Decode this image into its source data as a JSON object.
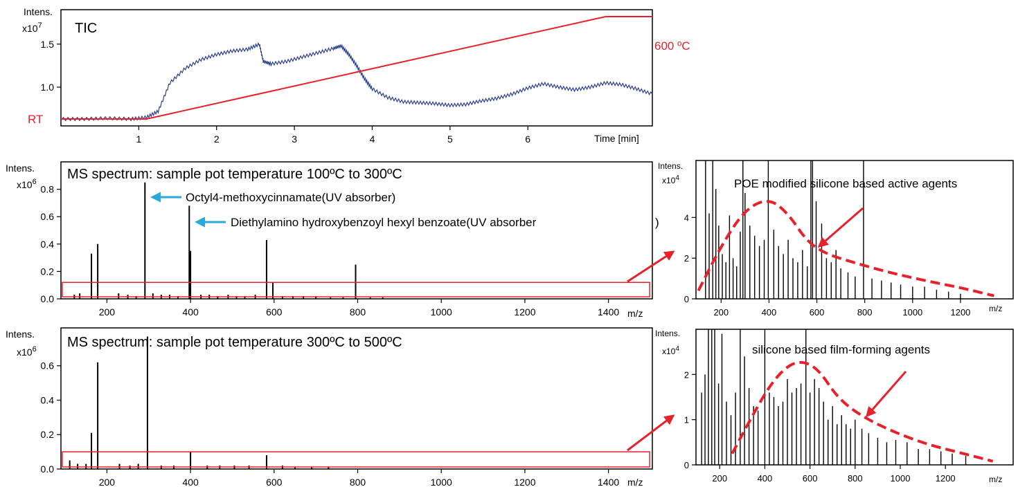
{
  "colors": {
    "tic": "#2b3f8f",
    "temperature": "#e8202a",
    "spectrum": "#000000",
    "arrow_red": "#e8202a",
    "arrow_blue": "#29a8e0"
  },
  "tic_panel": {
    "ylabel_1": "Intens.",
    "ylabel_2": "x10",
    "ylabel_exp": "7",
    "title": "TIC",
    "rt_label": "RT",
    "temp_end_label": "600 ºC",
    "xlabel": "Time [min]"
  },
  "ms1_panel": {
    "ylabel_1": "Intens.",
    "ylabel_2": "x10",
    "ylabel_exp": "6",
    "title": "MS spectrum: sample pot temperature 100ºC to 300ºC",
    "xunit": "m/z",
    "annotation_1": "Octyl4-methoxycinnamate(UV absorber)",
    "annotation_2": "Diethylamino hydroxybenzoyl hexyl benzoate(UV absorber",
    "annotation_2_close": ")"
  },
  "ms2_panel": {
    "ylabel_1": "Intens.",
    "ylabel_2": "x10",
    "ylabel_exp": "6",
    "title": "MS spectrum: sample pot temperature 300ºC to 500ºC",
    "xunit": "m/z"
  },
  "zoom1_panel": {
    "ylabel_1": "Intens.",
    "ylabel_2": "x10",
    "ylabel_exp": "4",
    "xunit": "m/z",
    "annotation": "POE modified silicone based active agents"
  },
  "zoom2_panel": {
    "ylabel_1": "Intens.",
    "ylabel_2": "x10",
    "ylabel_exp": "4",
    "xunit": "m/z",
    "annotation": "silicone based film-forming agents"
  },
  "chart_data": [
    {
      "type": "line",
      "title": "TIC",
      "xlabel": "Time [min]",
      "ylabel": "Intens. x10^7",
      "xlim": [
        0,
        7.6
      ],
      "ylim": [
        0.55,
        1.9
      ],
      "xticks": [
        1,
        2,
        3,
        4,
        5,
        6
      ],
      "yticks": [
        1.0,
        1.5
      ],
      "series": [
        {
          "name": "TIC",
          "x": [
            0.0,
            0.3,
            0.6,
            0.9,
            1.1,
            1.25,
            1.4,
            1.6,
            1.8,
            2.0,
            2.2,
            2.4,
            2.55,
            2.6,
            2.7,
            2.9,
            3.1,
            3.3,
            3.5,
            3.6,
            3.7,
            3.8,
            3.9,
            4.0,
            4.2,
            4.4,
            4.6,
            4.8,
            5.0,
            5.2,
            5.4,
            5.6,
            5.8,
            6.0,
            6.2,
            6.4,
            6.6,
            6.8,
            7.0,
            7.2,
            7.4,
            7.6
          ],
          "y": [
            0.63,
            0.63,
            0.64,
            0.63,
            0.65,
            0.72,
            1.05,
            1.22,
            1.32,
            1.38,
            1.42,
            1.44,
            1.5,
            1.3,
            1.27,
            1.3,
            1.35,
            1.4,
            1.45,
            1.48,
            1.38,
            1.25,
            1.1,
            0.98,
            0.88,
            0.83,
            0.82,
            0.81,
            0.79,
            0.8,
            0.84,
            0.87,
            0.92,
            0.99,
            1.04,
            1.0,
            0.97,
            1.0,
            1.05,
            1.03,
            0.98,
            0.92
          ]
        },
        {
          "name": "sample pot temperature",
          "x": [
            0.0,
            1.1,
            7.0,
            7.6
          ],
          "y": [
            0.63,
            0.63,
            1.82,
            1.82
          ]
        }
      ]
    },
    {
      "type": "bar",
      "title": "MS spectrum: sample pot temperature 100ºC to 300ºC",
      "xlabel": "m/z",
      "ylabel": "Intens. x10^6",
      "xlim": [
        90,
        1505
      ],
      "ylim": [
        0,
        1.0
      ],
      "xticks": [
        200,
        400,
        600,
        800,
        1000,
        1200,
        1400
      ],
      "yticks": [
        0.0,
        0.2,
        0.4,
        0.6,
        0.8
      ],
      "peaks": {
        "x": [
          163,
          178,
          291,
          397,
          400,
          582,
          597,
          795,
          122,
          135,
          228,
          250,
          270,
          310,
          330,
          350,
          370,
          425,
          445,
          465,
          490,
          510,
          530,
          555,
          620,
          645,
          670,
          700,
          735,
          765,
          830,
          860
        ],
        "y": [
          0.33,
          0.4,
          0.85,
          0.68,
          0.35,
          0.43,
          0.12,
          0.25,
          0.03,
          0.04,
          0.04,
          0.03,
          0.02,
          0.04,
          0.03,
          0.03,
          0.02,
          0.03,
          0.03,
          0.02,
          0.03,
          0.02,
          0.02,
          0.03,
          0.02,
          0.02,
          0.02,
          0.02,
          0.01,
          0.01,
          0.01,
          0.01
        ]
      },
      "highlight_box": {
        "x": [
          90,
          1502
        ],
        "y": [
          0.0,
          0.12
        ]
      }
    },
    {
      "type": "bar",
      "title": "MS spectrum: sample pot temperature 300ºC to 500ºC",
      "xlabel": "m/z",
      "ylabel": "Intens. x10^6",
      "xlim": [
        90,
        1505
      ],
      "ylim": [
        0,
        0.82
      ],
      "xticks": [
        200,
        400,
        600,
        800,
        1000,
        1200,
        1400
      ],
      "yticks": [
        0.0,
        0.2,
        0.4,
        0.6
      ],
      "peaks": {
        "x": [
          163,
          178,
          297,
          400,
          582,
          111,
          130,
          150,
          230,
          255,
          275,
          330,
          360,
          440,
          470,
          505,
          540,
          620,
          650,
          690,
          730
        ],
        "y": [
          0.21,
          0.62,
          0.77,
          0.1,
          0.08,
          0.05,
          0.03,
          0.03,
          0.03,
          0.02,
          0.03,
          0.02,
          0.02,
          0.02,
          0.02,
          0.02,
          0.02,
          0.02,
          0.01,
          0.01,
          0.01
        ]
      },
      "highlight_box": {
        "x": [
          90,
          1502
        ],
        "y": [
          0.0,
          0.1
        ]
      }
    },
    {
      "type": "bar",
      "title": "",
      "xlabel": "m/z",
      "ylabel": "Intens. x10^4",
      "xlim": [
        95,
        1420
      ],
      "ylim": [
        0,
        6.8
      ],
      "xticks": [
        200,
        400,
        600,
        800,
        1000,
        1200
      ],
      "yticks": [
        0,
        2,
        4
      ],
      "annotation": "POE modified silicone based active agents",
      "peaks": {
        "x": [
          135,
          150,
          165,
          178,
          190,
          205,
          220,
          235,
          250,
          265,
          280,
          291,
          300,
          320,
          340,
          360,
          380,
          397,
          420,
          440,
          460,
          480,
          500,
          520,
          540,
          560,
          575,
          582,
          597,
          620,
          640,
          660,
          680,
          700,
          730,
          760,
          795,
          830,
          870,
          910,
          950,
          1000,
          1050,
          1100,
          1150,
          1200
        ],
        "y": [
          6.8,
          4.2,
          6.8,
          5.4,
          3.6,
          2.2,
          1.8,
          4.1,
          2.0,
          1.6,
          3.3,
          6.8,
          5.2,
          3.6,
          3.1,
          2.6,
          2.9,
          6.8,
          3.4,
          2.6,
          2.2,
          2.9,
          2.0,
          1.8,
          2.4,
          1.6,
          6.8,
          6.8,
          4.8,
          3.7,
          2.0,
          1.8,
          2.4,
          1.5,
          1.3,
          1.1,
          6.8,
          1.0,
          0.9,
          0.8,
          0.7,
          0.6,
          0.6,
          0.45,
          0.35,
          0.25
        ]
      },
      "envelope": {
        "x": [
          105,
          200,
          300,
          400,
          480,
          560,
          640,
          750,
          900,
          1050,
          1200,
          1340
        ],
        "y": [
          0.4,
          2.6,
          4.4,
          4.95,
          4.2,
          2.8,
          2.2,
          1.8,
          1.3,
          0.9,
          0.55,
          0.15
        ]
      }
    },
    {
      "type": "bar",
      "title": "",
      "xlabel": "m/z",
      "ylabel": "Intens. x10^4",
      "xlim": [
        95,
        1500
      ],
      "ylim": [
        0,
        3.0
      ],
      "xticks": [
        200,
        400,
        600,
        800,
        1000,
        1200
      ],
      "yticks": [
        0,
        1,
        2
      ],
      "annotation": "silicone based film-forming agents",
      "peaks": {
        "x": [
          120,
          135,
          150,
          165,
          178,
          195,
          210,
          230,
          250,
          270,
          291,
          310,
          330,
          350,
          370,
          400,
          420,
          440,
          460,
          480,
          500,
          520,
          540,
          560,
          582,
          600,
          620,
          640,
          660,
          680,
          700,
          720,
          740,
          760,
          780,
          800,
          830,
          860,
          900,
          940,
          980,
          1030,
          1080,
          1130,
          1180,
          1230,
          1290
        ],
        "y": [
          1.6,
          2.0,
          3.0,
          3.0,
          3.0,
          1.8,
          2.9,
          1.4,
          1.1,
          1.6,
          3.0,
          2.4,
          1.7,
          1.3,
          1.2,
          3.0,
          1.6,
          1.5,
          1.3,
          1.4,
          1.9,
          1.6,
          1.7,
          1.8,
          3.0,
          1.6,
          1.9,
          1.7,
          1.4,
          1.0,
          1.3,
          0.9,
          1.1,
          0.9,
          0.8,
          1.0,
          0.8,
          0.7,
          0.6,
          0.5,
          0.55,
          0.5,
          0.35,
          0.35,
          0.3,
          0.25,
          0.2
        ]
      },
      "envelope": {
        "x": [
          255,
          330,
          420,
          500,
          570,
          640,
          720,
          820,
          960,
          1120,
          1280,
          1410
        ],
        "y": [
          0.25,
          0.95,
          1.75,
          2.2,
          2.3,
          2.1,
          1.5,
          1.1,
          0.75,
          0.45,
          0.25,
          0.08
        ]
      }
    }
  ]
}
